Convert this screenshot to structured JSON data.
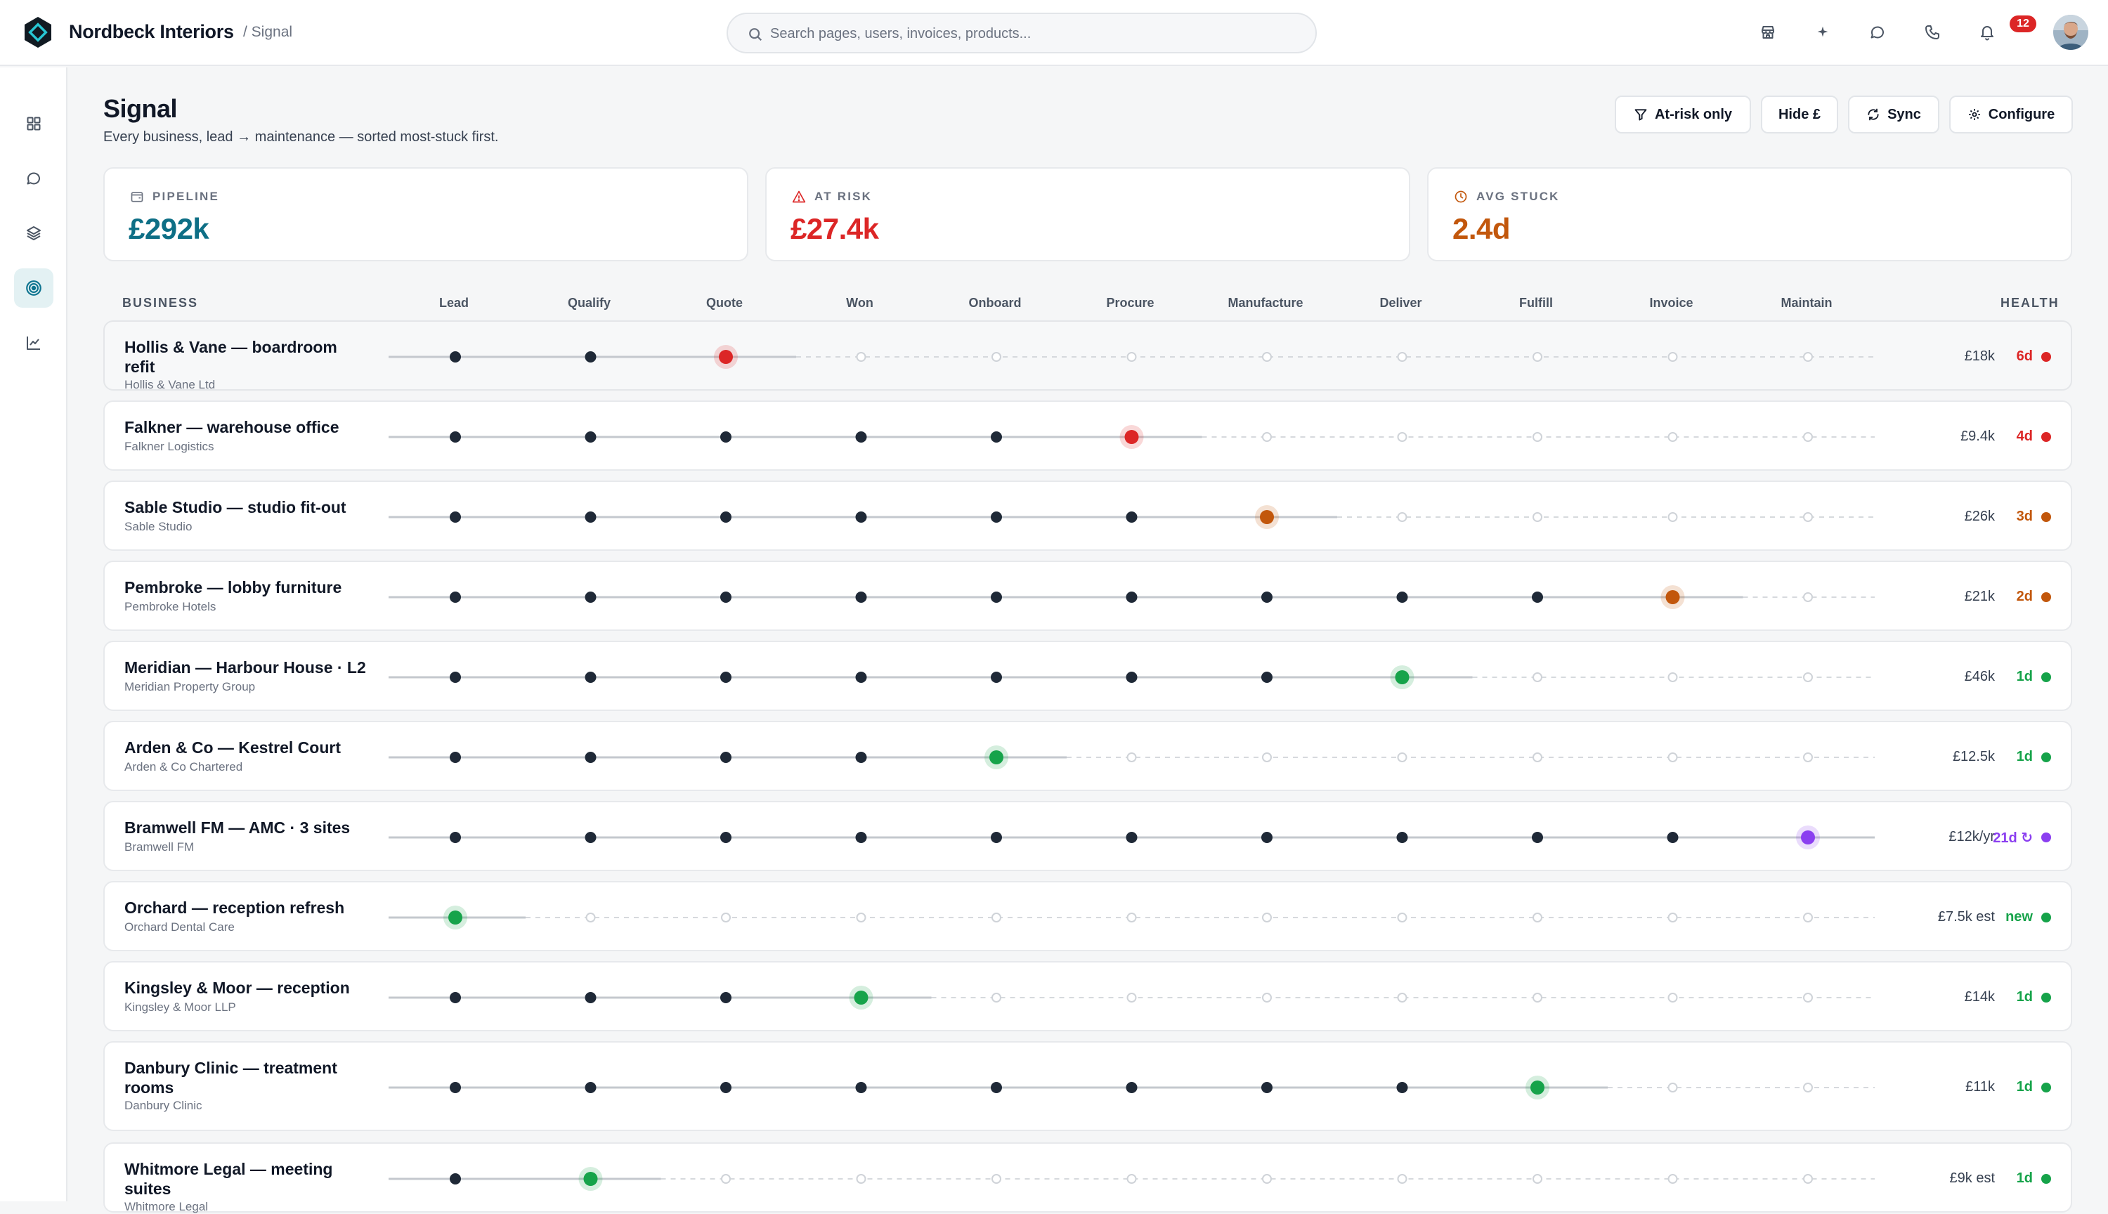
{
  "app": {
    "brand": "Nordbeck Interiors",
    "breadcrumb": "/ Signal"
  },
  "search": {
    "placeholder": "Search pages, users, invoices, products..."
  },
  "top_icons": [
    "store-icon",
    "sparkle-icon",
    "chat-icon",
    "phone-icon",
    "bell-icon"
  ],
  "notifications": {
    "count": "12"
  },
  "sidebar": {
    "items": [
      {
        "icon": "grid-icon",
        "active": false
      },
      {
        "icon": "chat-icon",
        "active": false
      },
      {
        "icon": "layers-icon",
        "active": false
      },
      {
        "icon": "target-icon",
        "active": true
      },
      {
        "icon": "chart-icon",
        "active": false
      }
    ]
  },
  "page": {
    "title": "Signal",
    "subtitle": "Every business, lead → maintenance — sorted most-stuck first."
  },
  "actions": {
    "at_risk": "At-risk only",
    "hide": "Hide £",
    "sync": "Sync",
    "configure": "Configure"
  },
  "stats": {
    "pipeline": {
      "label": "PIPELINE",
      "value": "£292k",
      "color": "#0e6f86"
    },
    "at_risk": {
      "label": "AT RISK",
      "value": "£27.4k",
      "color": "#dc2626"
    },
    "avg_stuck": {
      "label": "AVG STUCK",
      "value": "2.4d",
      "color": "#c2570c"
    }
  },
  "columns": {
    "business": "BUSINESS",
    "health": "HEALTH",
    "stages": [
      "Lead",
      "Qualify",
      "Quote",
      "Won",
      "Onboard",
      "Procure",
      "Manufacture",
      "Deliver",
      "Fulfill",
      "Invoice",
      "Maintain"
    ]
  },
  "colors": {
    "red": "#dc2626",
    "orange": "#c2570c",
    "green": "#16a34a",
    "purple": "#8b3ff0",
    "done": "#1f2937"
  },
  "rows": [
    {
      "name": "Hollis & Vane — boardroom refit",
      "company": "Hollis & Vane Ltd",
      "stage": 2,
      "status": "red",
      "value": "£18k",
      "days": "6d"
    },
    {
      "name": "Falkner — warehouse office",
      "company": "Falkner Logistics",
      "stage": 5,
      "status": "red",
      "value": "£9.4k",
      "days": "4d"
    },
    {
      "name": "Sable Studio — studio fit-out",
      "company": "Sable Studio",
      "stage": 6,
      "status": "orange",
      "value": "£26k",
      "days": "3d"
    },
    {
      "name": "Pembroke — lobby furniture",
      "company": "Pembroke Hotels",
      "stage": 9,
      "status": "orange",
      "value": "£21k",
      "days": "2d"
    },
    {
      "name": "Meridian — Harbour House · L2",
      "company": "Meridian Property Group",
      "stage": 7,
      "status": "green",
      "value": "£46k",
      "days": "1d"
    },
    {
      "name": "Arden & Co — Kestrel Court",
      "company": "Arden & Co Chartered",
      "stage": 4,
      "status": "green",
      "value": "£12.5k",
      "days": "1d"
    },
    {
      "name": "Bramwell FM — AMC · 3 sites",
      "company": "Bramwell FM",
      "stage": 10,
      "status": "purple",
      "value": "£12k/yr",
      "days": "21d ↻"
    },
    {
      "name": "Orchard — reception refresh",
      "company": "Orchard Dental Care",
      "stage": 0,
      "status": "green",
      "value": "£7.5k est",
      "days": "new"
    },
    {
      "name": "Kingsley & Moor — reception",
      "company": "Kingsley & Moor LLP",
      "stage": 3,
      "status": "green",
      "value": "£14k",
      "days": "1d"
    },
    {
      "name": "Danbury Clinic — treatment rooms",
      "company": "Danbury Clinic",
      "stage": 8,
      "status": "green",
      "value": "£11k",
      "days": "1d"
    },
    {
      "name": "Whitmore Legal — meeting suites",
      "company": "Whitmore Legal",
      "stage": 1,
      "status": "green",
      "value": "£9k est",
      "days": "1d"
    }
  ]
}
